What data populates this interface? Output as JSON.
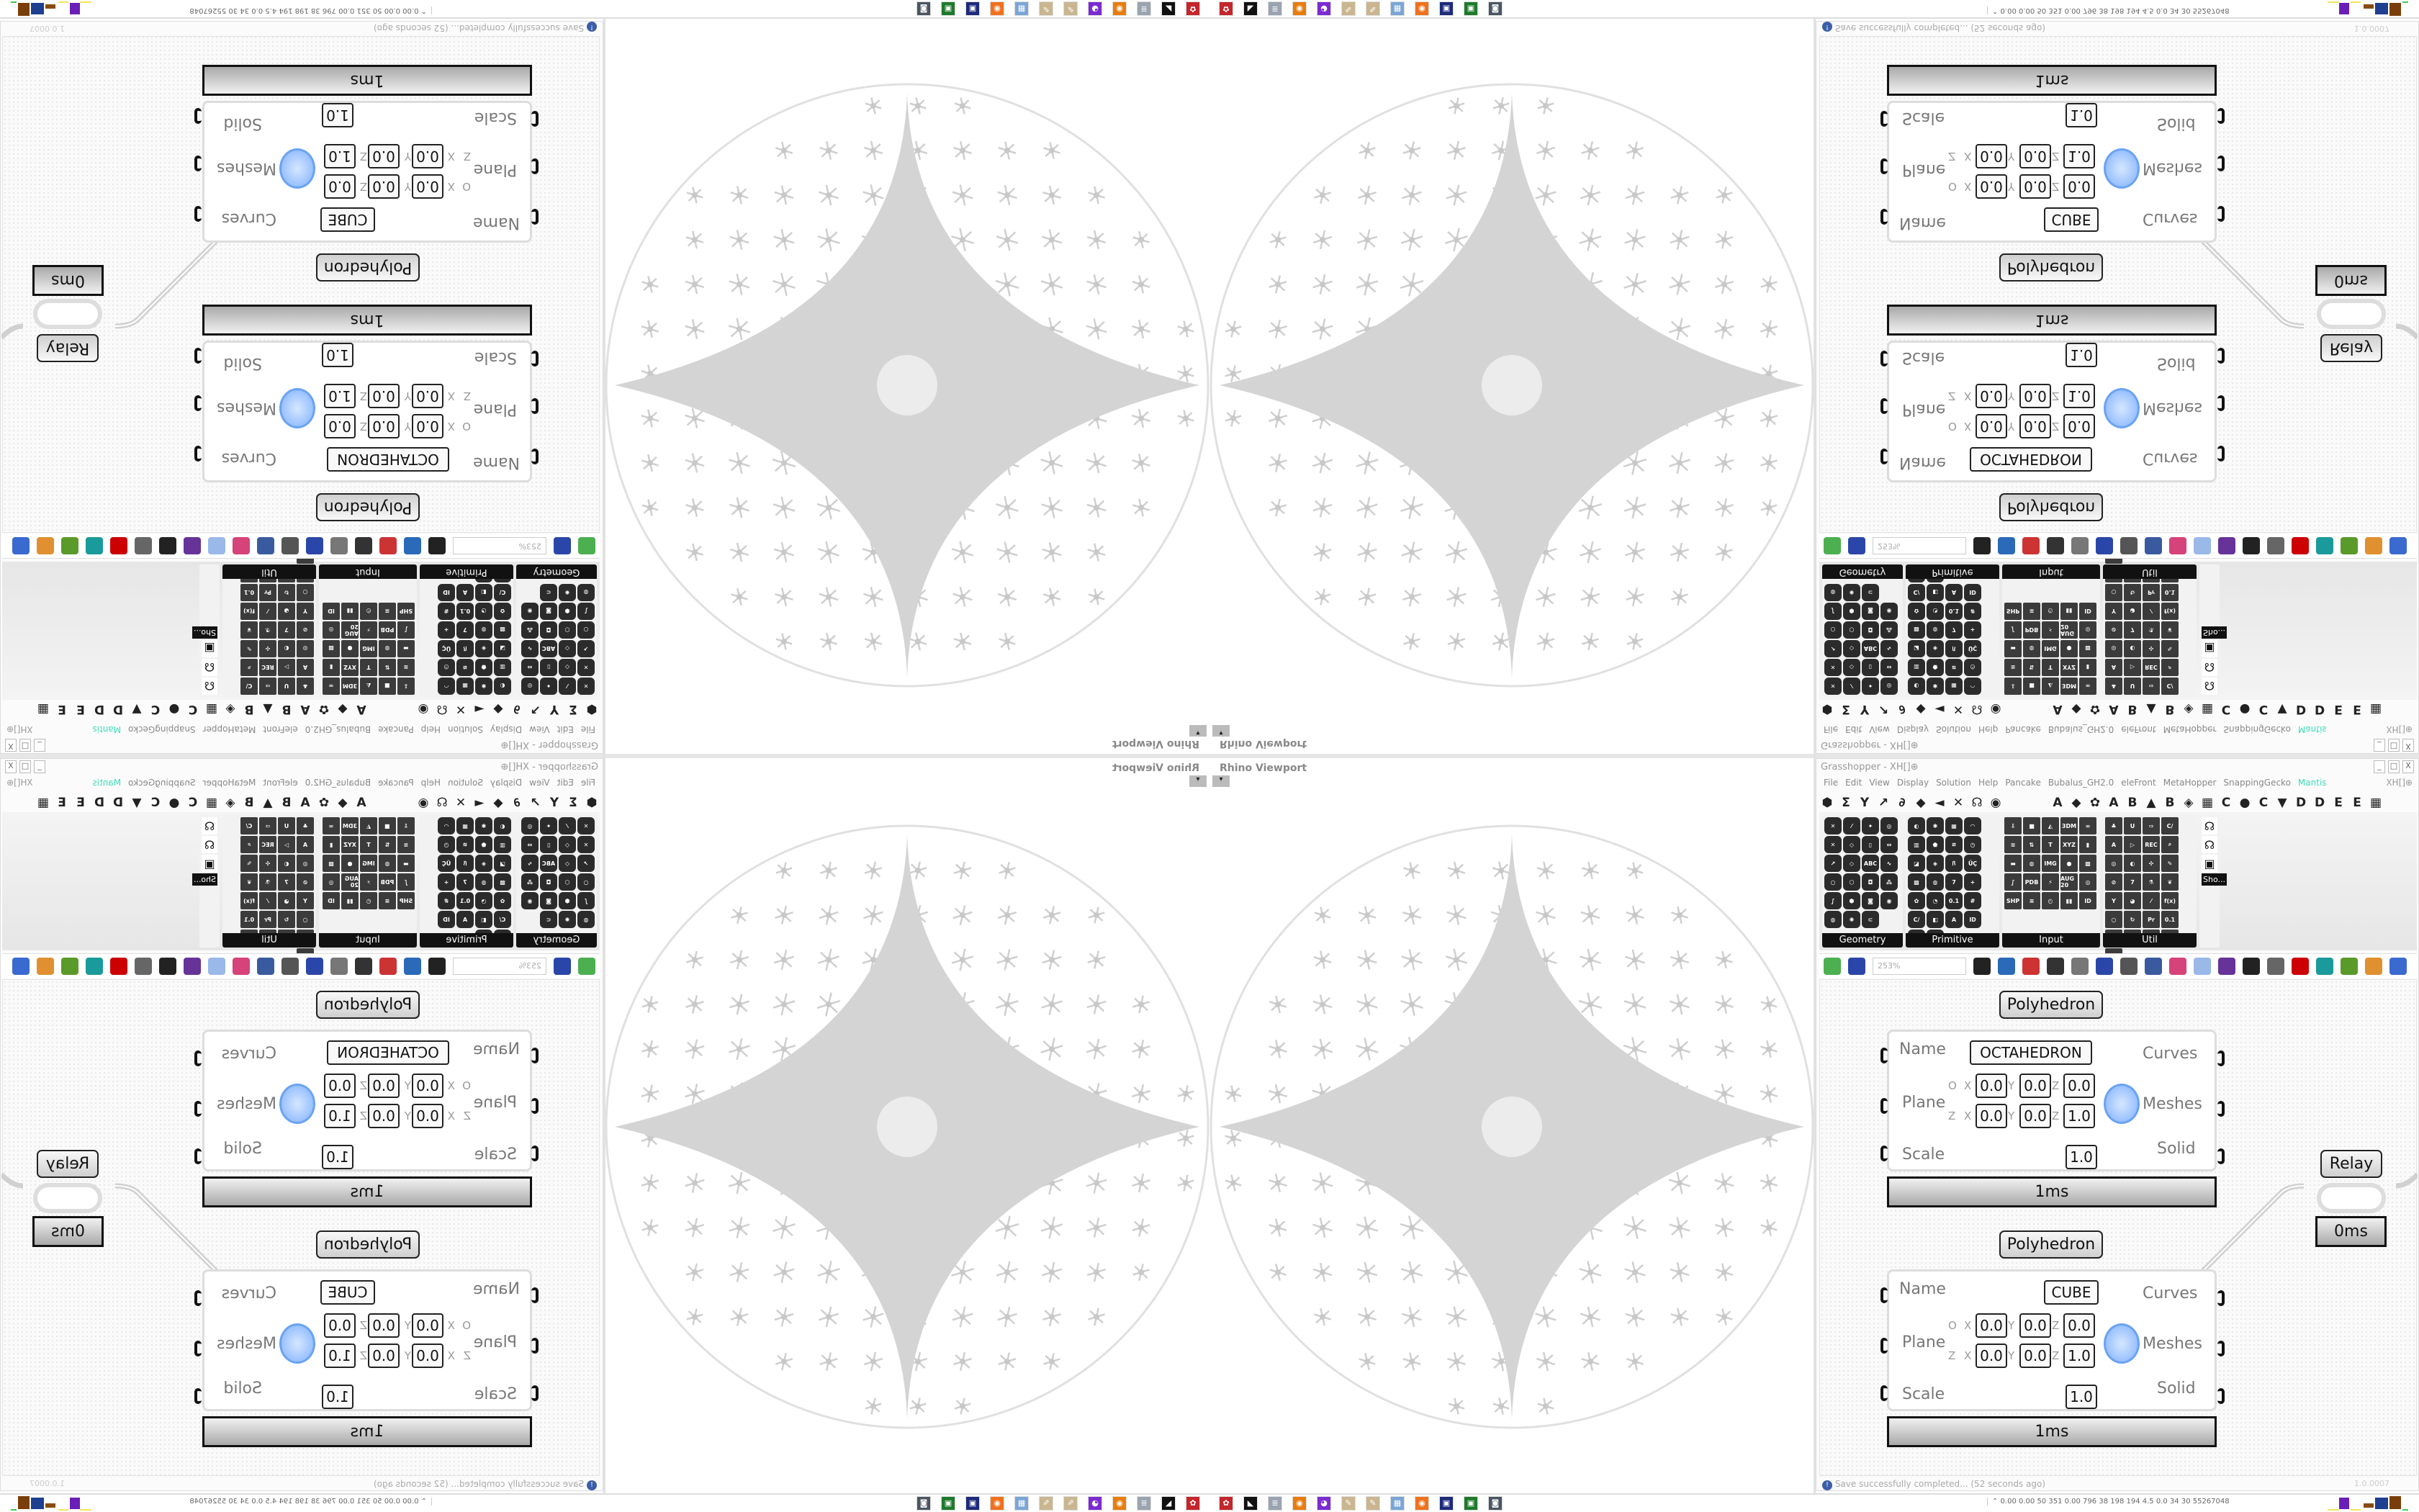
{
  "viewport": {
    "label": "Rhino Viewport",
    "dropdown_icon": "caret-down-icon"
  },
  "grasshopper": {
    "title": "Grasshopper - XH[]⊕",
    "window_buttons": [
      "_",
      "□",
      "X"
    ],
    "menu": [
      "File",
      "Edit",
      "View",
      "Display",
      "Solution",
      "Help",
      "Pancake",
      "Bubalus_GH2.0",
      "eleFront",
      "MetaHopper",
      "SnappingGecko",
      "Mantis"
    ],
    "menu_right": "XH[]⊕",
    "accent_color": "#3ddcb8",
    "tabs": [
      "⬢",
      "Σ",
      "Y",
      "↗",
      "∂",
      "◆",
      "◄",
      "✕",
      "☊",
      "◉",
      "A",
      "◆",
      "✿",
      "A",
      "B",
      "▲",
      "B",
      "◈",
      "▦",
      "C",
      "●",
      "C",
      "▼",
      "D",
      "D",
      "E",
      "E",
      "▦"
    ],
    "panels": [
      {
        "name": "Geometry",
        "icons": [
          "✕",
          "⁄",
          "✦",
          "◎",
          "✕",
          "◇",
          "▯",
          "⇔",
          "↗",
          "◇",
          "ABC",
          "∿",
          "○",
          "⬡",
          "◘",
          "⁂",
          "∫",
          "⬢",
          "◙",
          "◉",
          "◍",
          "✺",
          "⊂"
        ]
      },
      {
        "name": "Primitive",
        "icons": [
          "◐",
          "✱",
          "▦",
          "◠",
          "▥",
          "⬟",
          "⧄",
          "◷",
          "◪",
          "◈",
          "ꟗ",
          "ÜÇ",
          "▩",
          "◍",
          "7",
          "+",
          "✿",
          "◔",
          "0.1",
          "#",
          "C/",
          "◧",
          "A",
          "ID",
          "●",
          "◓"
        ]
      },
      {
        "name": "Input",
        "icons": [
          "⇩",
          "■",
          "◭",
          "3DM",
          "∞",
          "≋",
          "⇅",
          "T",
          "XYZ",
          "▮",
          "▬",
          "◍",
          "IMG",
          "●",
          "▩",
          "∫",
          "PDB",
          "⚡",
          "AUG 20",
          "◎",
          "SHP",
          "≡",
          "◴",
          "▮▮",
          "ID"
        ]
      },
      {
        "name": "Util",
        "icons": [
          "♣",
          "U",
          "⇨",
          "C/",
          "A",
          "▷",
          "REC",
          "⌕",
          "◎",
          "◐",
          "✣",
          "✎",
          "⊘",
          "7",
          "⚗",
          "❦",
          "Y",
          "◕",
          "⁄",
          "f(x)",
          "○",
          "↻",
          "Pr",
          "0.1",
          "✺",
          "ABC",
          "➜",
          "◔",
          "✕"
        ]
      },
      {
        "name": "Sho...",
        "icons": [
          "☊",
          "☊",
          "▣"
        ]
      }
    ],
    "toolbar": {
      "zoom_value": "253%",
      "icons": [
        "file-icon",
        "save-icon",
        "zoom-extents-icon",
        "preview-eye-icon",
        "sketch-icon",
        "wire-icon",
        "at-icon",
        "gha-icon",
        "image-icon",
        "search-icon",
        "box-icon",
        "bulb-icon",
        "cross-icon",
        "cup-icon",
        "cylinder-icon",
        "red-box-icon",
        "ribbon-icon",
        "knot-icon",
        "sphere-half-icon",
        "sphere-icon"
      ]
    },
    "components": [
      {
        "title": "Polyhedron",
        "name_label": "Name",
        "name_value": "OCTAHEDRON",
        "plane_label": "Plane",
        "scale_label": "Scale",
        "o_label": "O",
        "z_label": "Z",
        "o": [
          "0.0",
          "0.0",
          "0.0"
        ],
        "z": [
          "0.0",
          "0.0",
          "1.0"
        ],
        "axes": [
          "X",
          "Y",
          "Z"
        ],
        "scale": "1.0",
        "outputs": [
          "Curves",
          "Meshes",
          "Solid"
        ],
        "time": "1ms"
      },
      {
        "title": "Polyhedron",
        "name_label": "Name",
        "name_value": "CUBE",
        "plane_label": "Plane",
        "scale_label": "Scale",
        "o_label": "O",
        "z_label": "Z",
        "o": [
          "0.0",
          "0.0",
          "0.0"
        ],
        "z": [
          "0.0",
          "0.0",
          "1.0"
        ],
        "axes": [
          "X",
          "Y",
          "Z"
        ],
        "scale": "1.0",
        "outputs": [
          "Curves",
          "Meshes",
          "Solid"
        ],
        "time": "1ms"
      }
    ],
    "relay": {
      "title": "Relay",
      "time": "0ms"
    },
    "status": "Save successfully completed... (52 seconds ago)",
    "version": "1.0.0007"
  },
  "taskbar": {
    "apps": [
      {
        "name": "app-red",
        "color": "#c4262b",
        "glyph": "✿"
      },
      {
        "name": "app-inkscape",
        "color": "#111111",
        "glyph": "◣"
      },
      {
        "name": "app-scroll",
        "color": "#9aa3b0",
        "glyph": "≣"
      },
      {
        "name": "app-blender",
        "color": "#e87d0d",
        "glyph": "◉"
      },
      {
        "name": "app-purple",
        "color": "#7a2bd1",
        "glyph": "◕"
      },
      {
        "name": "app-paint",
        "color": "#c9b690",
        "glyph": "✎"
      },
      {
        "name": "app-paint2",
        "color": "#c9b690",
        "glyph": "✎"
      },
      {
        "name": "app-calculator",
        "color": "#7aa5d6",
        "glyph": "▦"
      },
      {
        "name": "app-firefox",
        "color": "#f0711c",
        "glyph": "◉"
      },
      {
        "name": "app-floppy",
        "color": "#1d2a7a",
        "glyph": "▣"
      },
      {
        "name": "app-terminal",
        "color": "#1d7a2a",
        "glyph": "▣"
      },
      {
        "name": "app-monitor",
        "color": "#4a5563",
        "glyph": "◙"
      }
    ],
    "stats": "⌃  0.00 0.00  50  351 0.00 796  38  198  194  4.5  0.0  34  30  55267048",
    "meter_colors": [
      "#f3e35a",
      "#6a1fb8",
      "#f3e35a",
      "#8a4a10",
      "#1e3f8f",
      "#7a3e0a",
      "#3fc94a"
    ]
  }
}
